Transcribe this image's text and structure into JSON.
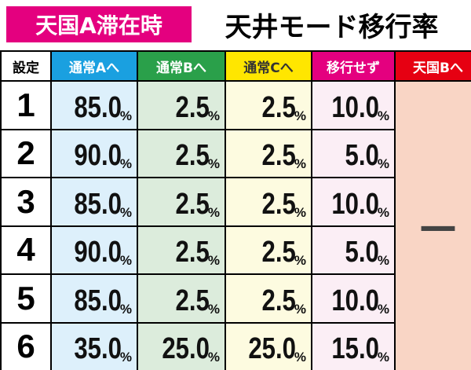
{
  "header": {
    "badge": "天国A滞在時",
    "title": "天井モード移行率"
  },
  "table": {
    "columns": [
      "設定",
      "通常Aへ",
      "通常Bへ",
      "通常Cへ",
      "移行せず",
      "天国Bへ"
    ],
    "rows": [
      {
        "setting": "1",
        "cells": [
          {
            "value": "85.0",
            "unit": "%"
          },
          {
            "value": "2.5",
            "unit": "%"
          },
          {
            "value": "2.5",
            "unit": "%"
          },
          {
            "value": "10.0",
            "unit": "%"
          }
        ]
      },
      {
        "setting": "2",
        "cells": [
          {
            "value": "90.0",
            "unit": "%"
          },
          {
            "value": "2.5",
            "unit": "%"
          },
          {
            "value": "2.5",
            "unit": "%"
          },
          {
            "value": "5.0",
            "unit": "%"
          }
        ]
      },
      {
        "setting": "3",
        "cells": [
          {
            "value": "85.0",
            "unit": "%"
          },
          {
            "value": "2.5",
            "unit": "%"
          },
          {
            "value": "2.5",
            "unit": "%"
          },
          {
            "value": "10.0",
            "unit": "%"
          }
        ]
      },
      {
        "setting": "4",
        "cells": [
          {
            "value": "90.0",
            "unit": "%"
          },
          {
            "value": "2.5",
            "unit": "%"
          },
          {
            "value": "2.5",
            "unit": "%"
          },
          {
            "value": "5.0",
            "unit": "%"
          }
        ]
      },
      {
        "setting": "5",
        "cells": [
          {
            "value": "85.0",
            "unit": "%"
          },
          {
            "value": "2.5",
            "unit": "%"
          },
          {
            "value": "2.5",
            "unit": "%"
          },
          {
            "value": "10.0",
            "unit": "%"
          }
        ]
      },
      {
        "setting": "6",
        "cells": [
          {
            "value": "35.0",
            "unit": "%"
          },
          {
            "value": "25.0",
            "unit": "%"
          },
          {
            "value": "25.0",
            "unit": "%"
          },
          {
            "value": "15.0",
            "unit": "%"
          }
        ]
      }
    ],
    "merged_cell": "—"
  }
}
